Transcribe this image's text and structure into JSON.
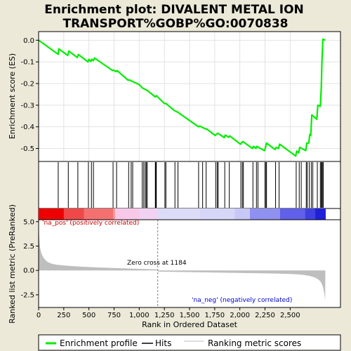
{
  "chart_data": {
    "type": "line",
    "title_line1": "Enrichment plot: DIVALENT METAL ION",
    "title_line2": "TRANSPORT%GOBP%GO:0070838",
    "xlabel": "Rank in Ordered Dataset",
    "ylabel_top": "Enrichment score (ES)",
    "ylabel_bottom": "Ranked list metric (PreRanked)",
    "xlim": [
      0,
      3000
    ],
    "x_ticks": [
      0,
      250,
      500,
      750,
      1000,
      1250,
      1500,
      1750,
      2000,
      2250,
      2500
    ],
    "x_tick_labels": [
      "0",
      "250",
      "500",
      "750",
      "1,000",
      "1,250",
      "1,500",
      "1,750",
      "2,000",
      "2,250",
      "2,500"
    ],
    "es_ylim": [
      -0.56,
      0.04
    ],
    "es_ticks": [
      0.0,
      -0.1,
      -0.2,
      -0.3,
      -0.4,
      -0.5
    ],
    "es_tick_labels": [
      "0.0",
      "-0.1",
      "-0.2",
      "-0.3",
      "-0.4",
      "-0.5"
    ],
    "metric_ylim": [
      -3.8,
      5.2
    ],
    "metric_ticks": [
      5.0,
      2.5,
      0.0,
      -2.5
    ],
    "metric_tick_labels": [
      "5.0",
      "2.5",
      "0.0",
      "-2.5"
    ],
    "zero_cross_rank": 1184,
    "zero_cross_label": "Zero cross at 1184",
    "pos_label": "'na_pos' (positively correlated)",
    "neg_label": "'na_neg' (negatively correlated)",
    "n_genes": 2850,
    "hits": [
      195,
      295,
      390,
      495,
      525,
      545,
      740,
      775,
      895,
      920,
      935,
      1030,
      1045,
      1060,
      1070,
      1080,
      1160,
      1165,
      1170,
      1255,
      1265,
      1355,
      1385,
      1590,
      1630,
      1665,
      1760,
      1775,
      1785,
      1850,
      1895,
      2010,
      2025,
      2035,
      2130,
      2165,
      2180,
      2250,
      2260,
      2265,
      2355,
      2390,
      2560,
      2590,
      2610,
      2660,
      2670,
      2690,
      2710,
      2725,
      2770,
      2800,
      2810,
      2815,
      2820,
      2830
    ],
    "es_curve": [
      [
        0,
        0.0
      ],
      [
        195,
        -0.065
      ],
      [
        200,
        -0.04
      ],
      [
        290,
        -0.07
      ],
      [
        300,
        -0.05
      ],
      [
        385,
        -0.08
      ],
      [
        395,
        -0.066
      ],
      [
        490,
        -0.1
      ],
      [
        500,
        -0.088
      ],
      [
        520,
        -0.098
      ],
      [
        530,
        -0.088
      ],
      [
        545,
        -0.094
      ],
      [
        555,
        -0.082
      ],
      [
        735,
        -0.14
      ],
      [
        745,
        -0.138
      ],
      [
        770,
        -0.145
      ],
      [
        780,
        -0.14
      ],
      [
        890,
        -0.185
      ],
      [
        900,
        -0.183
      ],
      [
        930,
        -0.19
      ],
      [
        1000,
        -0.205
      ],
      [
        1030,
        -0.22
      ],
      [
        1080,
        -0.232
      ],
      [
        1160,
        -0.262
      ],
      [
        1170,
        -0.256
      ],
      [
        1250,
        -0.292
      ],
      [
        1265,
        -0.292
      ],
      [
        1350,
        -0.325
      ],
      [
        1385,
        -0.333
      ],
      [
        1590,
        -0.4
      ],
      [
        1600,
        -0.396
      ],
      [
        1660,
        -0.41
      ],
      [
        1670,
        -0.41
      ],
      [
        1755,
        -0.44
      ],
      [
        1765,
        -0.435
      ],
      [
        1780,
        -0.43
      ],
      [
        1790,
        -0.432
      ],
      [
        1845,
        -0.45
      ],
      [
        1855,
        -0.438
      ],
      [
        1890,
        -0.448
      ],
      [
        1900,
        -0.442
      ],
      [
        2005,
        -0.48
      ],
      [
        2015,
        -0.475
      ],
      [
        2030,
        -0.468
      ],
      [
        2125,
        -0.5
      ],
      [
        2135,
        -0.49
      ],
      [
        2160,
        -0.5
      ],
      [
        2170,
        -0.49
      ],
      [
        2185,
        -0.495
      ],
      [
        2245,
        -0.51
      ],
      [
        2255,
        -0.495
      ],
      [
        2265,
        -0.475
      ],
      [
        2350,
        -0.505
      ],
      [
        2360,
        -0.495
      ],
      [
        2385,
        -0.5
      ],
      [
        2395,
        -0.48
      ],
      [
        2555,
        -0.535
      ],
      [
        2565,
        -0.512
      ],
      [
        2585,
        -0.52
      ],
      [
        2595,
        -0.495
      ],
      [
        2655,
        -0.51
      ],
      [
        2665,
        -0.475
      ],
      [
        2685,
        -0.475
      ],
      [
        2695,
        -0.435
      ],
      [
        2705,
        -0.44
      ],
      [
        2715,
        -0.345
      ],
      [
        2765,
        -0.365
      ],
      [
        2775,
        -0.3
      ],
      [
        2800,
        -0.305
      ],
      [
        2810,
        -0.21
      ],
      [
        2815,
        -0.11
      ],
      [
        2825,
        0.005
      ],
      [
        2850,
        0.0
      ]
    ],
    "heatmap_stops": [
      [
        0,
        "#ee0000"
      ],
      [
        250,
        "#f04848"
      ],
      [
        450,
        "#f47070"
      ],
      [
        740,
        "#f69a9a"
      ],
      [
        760,
        "#f8c8e8"
      ],
      [
        1000,
        "#f2d2f2"
      ],
      [
        1184,
        "#dcdcf8"
      ],
      [
        1600,
        "#d6d6f8"
      ],
      [
        1950,
        "#c8c8f6"
      ],
      [
        2100,
        "#9090f0"
      ],
      [
        2400,
        "#6060e8"
      ],
      [
        2650,
        "#4040e0"
      ],
      [
        2750,
        "#2020d8"
      ],
      [
        2850,
        "#0000c8"
      ]
    ],
    "colors": {
      "es_line": "#00ee00",
      "hits": "#000000",
      "metric_fill": "#bebebe",
      "pos_text": "#cc0000",
      "neg_text": "#0000cc",
      "zero_line": "#808080",
      "background": "#ece9d8",
      "plot_bg": "#ffffff"
    },
    "legend": [
      "Enrichment profile",
      "Hits",
      "Ranking metric scores"
    ]
  }
}
